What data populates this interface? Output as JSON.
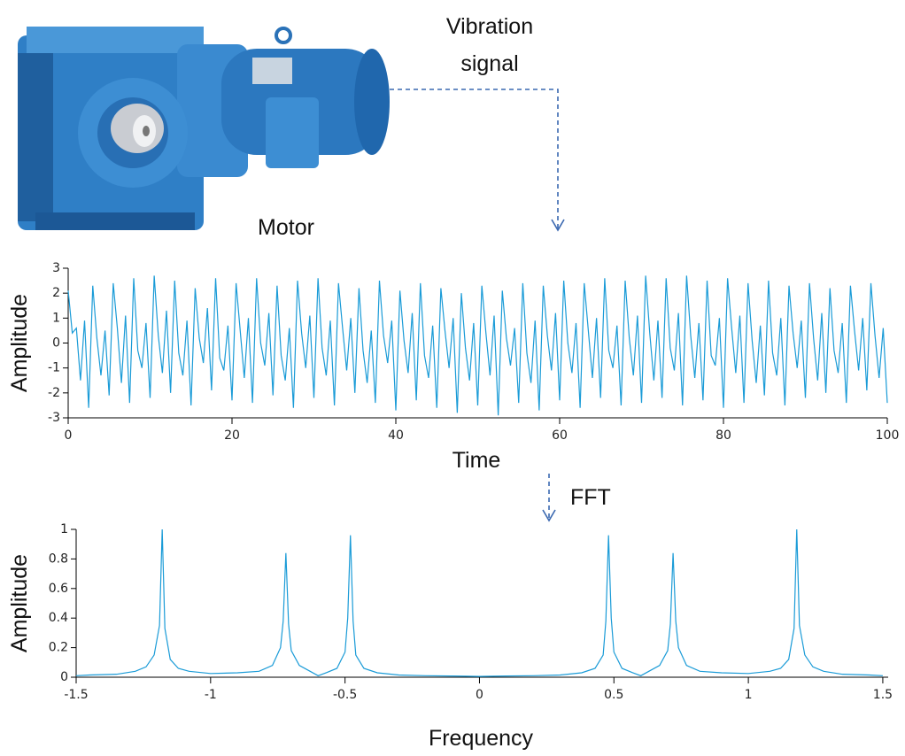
{
  "annotations": {
    "signal_label": [
      "Vibration",
      "signal"
    ],
    "motor_label": "Motor",
    "fft_label": "FFT"
  },
  "chart_data": [
    {
      "type": "line",
      "xlabel": "Time",
      "ylabel": "Amplitude",
      "color": "#1a9bd7",
      "xlim": [
        0,
        100
      ],
      "ylim": [
        -3,
        3
      ],
      "xticks": [
        0,
        20,
        40,
        60,
        80,
        100
      ],
      "yticks": [
        -3,
        -2,
        -1,
        0,
        1,
        2,
        3
      ],
      "x": [
        0,
        0.5,
        1,
        1.5,
        2,
        2.5,
        3,
        3.5,
        4,
        4.5,
        5,
        5.5,
        6,
        6.5,
        7,
        7.5,
        8,
        8.5,
        9,
        9.5,
        10,
        10.5,
        11,
        11.5,
        12,
        12.5,
        13,
        13.5,
        14,
        14.5,
        15,
        15.5,
        16,
        16.5,
        17,
        17.5,
        18,
        18.5,
        19,
        19.5,
        20,
        20.5,
        21,
        21.5,
        22,
        22.5,
        23,
        23.5,
        24,
        24.5,
        25,
        25.5,
        26,
        26.5,
        27,
        27.5,
        28,
        28.5,
        29,
        29.5,
        30,
        30.5,
        31,
        31.5,
        32,
        32.5,
        33,
        33.5,
        34,
        34.5,
        35,
        35.5,
        36,
        36.5,
        37,
        37.5,
        38,
        38.5,
        39,
        39.5,
        40,
        40.5,
        41,
        41.5,
        42,
        42.5,
        43,
        43.5,
        44,
        44.5,
        45,
        45.5,
        46,
        46.5,
        47,
        47.5,
        48,
        48.5,
        49,
        49.5,
        50,
        50.5,
        51,
        51.5,
        52,
        52.5,
        53,
        53.5,
        54,
        54.5,
        55,
        55.5,
        56,
        56.5,
        57,
        57.5,
        58,
        58.5,
        59,
        59.5,
        60,
        60.5,
        61,
        61.5,
        62,
        62.5,
        63,
        63.5,
        64,
        64.5,
        65,
        65.5,
        66,
        66.5,
        67,
        67.5,
        68,
        68.5,
        69,
        69.5,
        70,
        70.5,
        71,
        71.5,
        72,
        72.5,
        73,
        73.5,
        74,
        74.5,
        75,
        75.5,
        76,
        76.5,
        77,
        77.5,
        78,
        78.5,
        79,
        79.5,
        80,
        80.5,
        81,
        81.5,
        82,
        82.5,
        83,
        83.5,
        84,
        84.5,
        85,
        85.5,
        86,
        86.5,
        87,
        87.5,
        88,
        88.5,
        89,
        89.5,
        90,
        90.5,
        91,
        91.5,
        92,
        92.5,
        93,
        93.5,
        94,
        94.5,
        95,
        95.5,
        96,
        96.5,
        97,
        97.5,
        98,
        98.5,
        99,
        99.5,
        100
      ],
      "values": [
        2.1,
        0.4,
        0.6,
        -1.5,
        0.9,
        -2.6,
        2.3,
        0.2,
        -1.3,
        0.5,
        -2.1,
        2.4,
        0.6,
        -1.6,
        1.1,
        -2.4,
        2.6,
        -0.3,
        -1.0,
        0.8,
        -2.2,
        2.7,
        0.3,
        -1.2,
        1.3,
        -2.0,
        2.5,
        -0.4,
        -1.3,
        0.9,
        -2.5,
        2.2,
        0.2,
        -0.8,
        1.4,
        -1.9,
        2.6,
        -0.6,
        -1.1,
        0.7,
        -2.3,
        2.4,
        0.5,
        -1.4,
        1.0,
        -2.4,
        2.6,
        0.0,
        -0.9,
        1.2,
        -2.1,
        2.3,
        -0.5,
        -1.5,
        0.6,
        -2.6,
        2.5,
        0.4,
        -1.0,
        1.1,
        -2.2,
        2.6,
        -0.2,
        -1.3,
        0.9,
        -2.5,
        2.4,
        0.6,
        -1.1,
        1.0,
        -2.0,
        2.2,
        -0.3,
        -1.6,
        0.5,
        -2.4,
        2.5,
        0.3,
        -0.8,
        0.9,
        -2.7,
        2.1,
        0.1,
        -1.2,
        1.2,
        -2.3,
        2.4,
        -0.5,
        -1.4,
        0.7,
        -2.6,
        2.2,
        0.5,
        -1.0,
        1.0,
        -2.8,
        2.0,
        -0.2,
        -1.5,
        0.8,
        -2.5,
        2.3,
        0.4,
        -1.3,
        1.1,
        -2.9,
        2.1,
        0.2,
        -0.9,
        0.6,
        -2.4,
        2.4,
        -0.4,
        -1.6,
        0.9,
        -2.7,
        2.3,
        0.3,
        -1.1,
        1.2,
        -2.3,
        2.5,
        0.0,
        -1.2,
        0.8,
        -2.6,
        2.4,
        0.5,
        -1.4,
        1.0,
        -2.2,
        2.6,
        -0.3,
        -1.0,
        0.7,
        -2.5,
        2.5,
        0.2,
        -1.3,
        1.1,
        -2.4,
        2.7,
        0.4,
        -1.5,
        0.9,
        -2.2,
        2.6,
        -0.2,
        -1.1,
        1.2,
        -2.5,
        2.7,
        0.3,
        -1.4,
        0.8,
        -2.3,
        2.5,
        -0.5,
        -0.9,
        1.0,
        -2.6,
        2.6,
        0.6,
        -1.2,
        1.1,
        -2.4,
        2.4,
        0.1,
        -1.6,
        0.7,
        -2.1,
        2.5,
        -0.4,
        -1.3,
        1.0,
        -2.5,
        2.3,
        0.4,
        -1.0,
        0.9,
        -2.2,
        2.4,
        0.2,
        -1.5,
        1.2,
        -2.0,
        2.2,
        -0.3,
        -1.2,
        0.8,
        -2.4,
        2.3,
        0.5,
        -1.1,
        1.0,
        -1.9,
        2.4,
        0.3,
        -1.4,
        0.6,
        -2.4
      ]
    },
    {
      "type": "line",
      "xlabel": "Frequency",
      "ylabel": "Amplitude",
      "color": "#1a9bd7",
      "xlim": [
        -1.5,
        1.52
      ],
      "ylim": [
        0,
        1
      ],
      "xticks": [
        -1.5,
        -1,
        -0.5,
        0,
        0.5,
        1,
        1.5
      ],
      "yticks": [
        0,
        0.2,
        0.4,
        0.6,
        0.8,
        1
      ],
      "x": [
        -1.5,
        -1.45,
        -1.35,
        -1.28,
        -1.24,
        -1.21,
        -1.19,
        -1.18,
        -1.17,
        -1.15,
        -1.12,
        -1.08,
        -1.0,
        -0.9,
        -0.82,
        -0.77,
        -0.74,
        -0.73,
        -0.72,
        -0.71,
        -0.7,
        -0.67,
        -0.63,
        -0.6,
        -0.57,
        -0.53,
        -0.5,
        -0.49,
        -0.48,
        -0.47,
        -0.46,
        -0.43,
        -0.38,
        -0.3,
        -0.2,
        -0.1,
        0,
        0.1,
        0.2,
        0.3,
        0.38,
        0.43,
        0.46,
        0.47,
        0.48,
        0.49,
        0.5,
        0.53,
        0.57,
        0.6,
        0.63,
        0.67,
        0.7,
        0.71,
        0.72,
        0.73,
        0.74,
        0.77,
        0.82,
        0.9,
        1.0,
        1.08,
        1.12,
        1.15,
        1.17,
        1.18,
        1.19,
        1.21,
        1.24,
        1.28,
        1.35,
        1.45,
        1.5
      ],
      "values": [
        0.01,
        0.015,
        0.02,
        0.04,
        0.07,
        0.15,
        0.35,
        1.0,
        0.33,
        0.12,
        0.06,
        0.04,
        0.025,
        0.03,
        0.04,
        0.08,
        0.2,
        0.38,
        0.84,
        0.36,
        0.18,
        0.08,
        0.04,
        0.01,
        0.03,
        0.06,
        0.17,
        0.4,
        0.96,
        0.38,
        0.15,
        0.06,
        0.03,
        0.015,
        0.01,
        0.008,
        0.005,
        0.008,
        0.01,
        0.015,
        0.03,
        0.06,
        0.15,
        0.38,
        0.96,
        0.4,
        0.17,
        0.06,
        0.03,
        0.01,
        0.04,
        0.08,
        0.18,
        0.36,
        0.84,
        0.38,
        0.2,
        0.08,
        0.04,
        0.03,
        0.025,
        0.04,
        0.06,
        0.12,
        0.33,
        1.0,
        0.35,
        0.15,
        0.07,
        0.04,
        0.02,
        0.015,
        0.01
      ]
    }
  ]
}
